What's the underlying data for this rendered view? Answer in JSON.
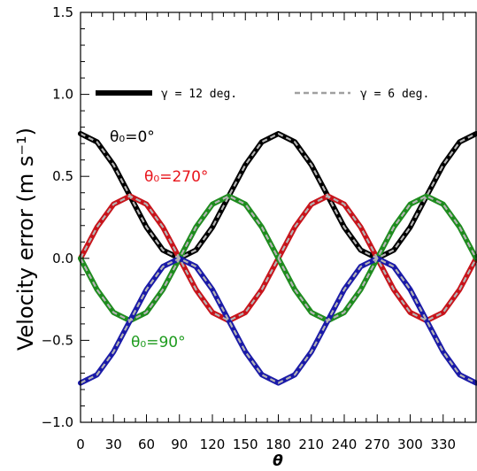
{
  "chart_data": {
    "type": "line",
    "title": "",
    "xlabel": "θ",
    "ylabel": "Velocity error (m s⁻¹)",
    "xlim": [
      0,
      360
    ],
    "ylim": [
      -1.0,
      1.5
    ],
    "xticks": [
      0,
      30,
      60,
      90,
      120,
      150,
      180,
      210,
      240,
      270,
      300,
      330
    ],
    "xtick_labels": [
      "0",
      "30",
      "60",
      "90",
      "120",
      "150",
      "180",
      "210",
      "240",
      "270",
      "300",
      "330"
    ],
    "yticks": [
      -1.0,
      -0.5,
      0.0,
      0.5,
      1.0,
      1.5
    ],
    "ytick_labels": [
      "−1.0",
      "−0.5",
      "0.0",
      "0.5",
      "1.0",
      "1.5"
    ],
    "grid": false,
    "legend": {
      "placement": "top",
      "entries": [
        {
          "label": "γ = 12 deg.",
          "style": "solid-thick"
        },
        {
          "label": "γ = 6 deg.",
          "style": "dashed-grey"
        }
      ]
    },
    "annotations": [
      {
        "text": "θ₀=0°",
        "color": "#000000"
      },
      {
        "text": "θ₀=270°",
        "color": "#e8141b"
      },
      {
        "text": "θ₀=90°",
        "color": "#1e9b1e"
      }
    ],
    "series": [
      {
        "color": "#000000",
        "x": [
          0,
          15,
          30,
          45,
          60,
          75,
          90,
          105,
          120,
          135,
          150,
          165,
          180,
          195,
          210,
          225,
          240,
          255,
          270,
          285,
          300,
          315,
          330,
          345,
          360
        ],
        "y": [
          0.76,
          0.71,
          0.57,
          0.38,
          0.19,
          0.05,
          0.0,
          0.05,
          0.19,
          0.38,
          0.57,
          0.71,
          0.76,
          0.71,
          0.57,
          0.38,
          0.19,
          0.05,
          0.0,
          0.05,
          0.19,
          0.38,
          0.57,
          0.71,
          0.76
        ]
      },
      {
        "color": "#c8141b",
        "x": [
          0,
          15,
          30,
          45,
          60,
          75,
          90,
          105,
          120,
          135,
          150,
          165,
          180,
          195,
          210,
          225,
          240,
          255,
          270,
          285,
          300,
          315,
          330,
          345,
          360
        ],
        "y": [
          0.0,
          0.19,
          0.33,
          0.38,
          0.33,
          0.19,
          0.0,
          -0.19,
          -0.33,
          -0.38,
          -0.33,
          -0.19,
          0.0,
          0.19,
          0.33,
          0.38,
          0.33,
          0.19,
          0.0,
          -0.19,
          -0.33,
          -0.38,
          -0.33,
          -0.19,
          0.0
        ]
      },
      {
        "color": "#1e8c1e",
        "x": [
          0,
          15,
          30,
          45,
          60,
          75,
          90,
          105,
          120,
          135,
          150,
          165,
          180,
          195,
          210,
          225,
          240,
          255,
          270,
          285,
          300,
          315,
          330,
          345,
          360
        ],
        "y": [
          0.0,
          -0.19,
          -0.33,
          -0.38,
          -0.33,
          -0.19,
          0.0,
          0.19,
          0.33,
          0.38,
          0.33,
          0.19,
          0.0,
          -0.19,
          -0.33,
          -0.38,
          -0.33,
          -0.19,
          0.0,
          0.19,
          0.33,
          0.38,
          0.33,
          0.19,
          0.0
        ]
      },
      {
        "color": "#1a1aa8",
        "x": [
          0,
          15,
          30,
          45,
          60,
          75,
          90,
          105,
          120,
          135,
          150,
          165,
          180,
          195,
          210,
          225,
          240,
          255,
          270,
          285,
          300,
          315,
          330,
          345,
          360
        ],
        "y": [
          -0.76,
          -0.71,
          -0.57,
          -0.38,
          -0.19,
          -0.05,
          0.0,
          -0.05,
          -0.19,
          -0.38,
          -0.57,
          -0.71,
          -0.76,
          -0.71,
          -0.57,
          -0.38,
          -0.19,
          -0.05,
          0.0,
          -0.05,
          -0.19,
          -0.38,
          -0.57,
          -0.71,
          -0.76
        ]
      }
    ]
  }
}
